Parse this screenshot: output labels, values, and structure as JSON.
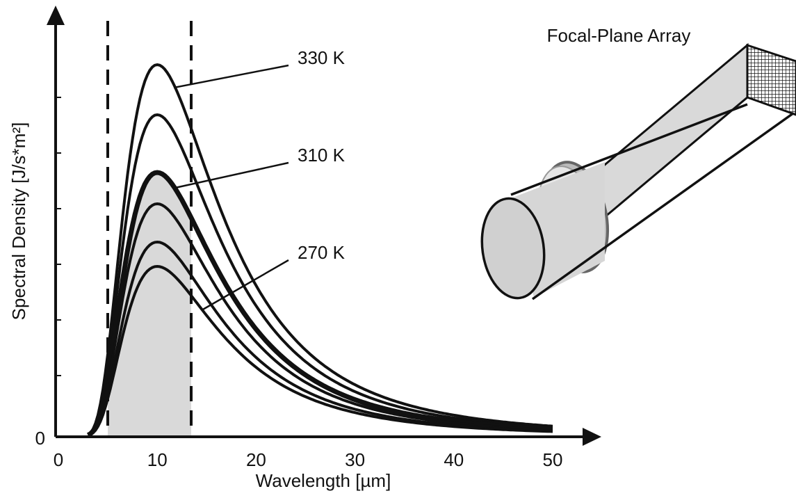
{
  "axes": {
    "y_label": "Spectral Density [J/s*m²]",
    "x_label": "Wavelength [µm]",
    "x_ticks": [
      0,
      10,
      20,
      30,
      40,
      50
    ],
    "y_ticks": [
      0
    ]
  },
  "curve_labels": [
    "330 K",
    "310 K",
    "270 K"
  ],
  "detector": {
    "label": "Focal-Plane Array"
  }
}
